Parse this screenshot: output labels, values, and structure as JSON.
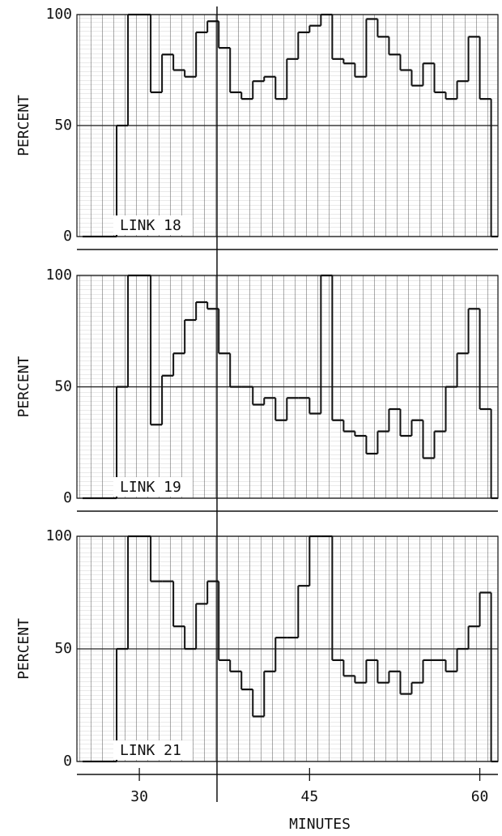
{
  "chart_data": [
    {
      "type": "line",
      "step": true,
      "annotation": "LINK 18",
      "ylabel": "PERCENT",
      "ylim": [
        0,
        100
      ],
      "yticks": [
        0,
        50,
        100
      ],
      "xlim": [
        24.5,
        61.6
      ],
      "grid": true,
      "x": [
        25,
        26,
        27,
        28,
        29,
        30,
        31,
        32,
        33,
        34,
        35,
        36,
        37,
        38,
        39,
        40,
        41,
        42,
        43,
        44,
        45,
        46,
        47,
        48,
        49,
        50,
        51,
        52,
        53,
        54,
        55,
        56,
        57,
        58,
        59,
        60,
        61
      ],
      "series": [
        {
          "color": "#111111",
          "values": [
            0,
            0,
            0,
            50,
            100,
            100,
            65,
            82,
            75,
            72,
            92,
            97,
            85,
            65,
            62,
            70,
            72,
            62,
            80,
            92,
            95,
            100,
            80,
            78,
            72,
            98,
            90,
            82,
            75,
            68,
            78,
            65,
            62,
            70,
            90,
            62,
            0
          ]
        }
      ]
    },
    {
      "type": "line",
      "step": true,
      "annotation": "LINK 19",
      "ylabel": "PERCENT",
      "ylim": [
        0,
        100
      ],
      "yticks": [
        0,
        50,
        100
      ],
      "xlim": [
        24.5,
        61.6
      ],
      "grid": true,
      "x": [
        25,
        26,
        27,
        28,
        29,
        30,
        31,
        32,
        33,
        34,
        35,
        36,
        37,
        38,
        39,
        40,
        41,
        42,
        43,
        44,
        45,
        46,
        47,
        48,
        49,
        50,
        51,
        52,
        53,
        54,
        55,
        56,
        57,
        58,
        59,
        60,
        61
      ],
      "series": [
        {
          "color": "#111111",
          "values": [
            0,
            0,
            0,
            50,
            100,
            100,
            33,
            55,
            65,
            80,
            88,
            85,
            65,
            50,
            50,
            42,
            45,
            35,
            45,
            45,
            38,
            100,
            35,
            30,
            28,
            20,
            30,
            40,
            28,
            35,
            18,
            30,
            50,
            65,
            85,
            40,
            0
          ]
        }
      ]
    },
    {
      "type": "line",
      "step": true,
      "annotation": "LINK 21",
      "ylabel": "PERCENT",
      "xlabel": "MINUTES",
      "ylim": [
        0,
        100
      ],
      "yticks": [
        0,
        50,
        100
      ],
      "xlim": [
        24.5,
        61.6
      ],
      "xticks": [
        30,
        45,
        60
      ],
      "grid": true,
      "x": [
        25,
        26,
        27,
        28,
        29,
        30,
        31,
        32,
        33,
        34,
        35,
        36,
        37,
        38,
        39,
        40,
        41,
        42,
        43,
        44,
        45,
        46,
        47,
        48,
        49,
        50,
        51,
        52,
        53,
        54,
        55,
        56,
        57,
        58,
        59,
        60,
        61
      ],
      "series": [
        {
          "color": "#111111",
          "values": [
            0,
            0,
            0,
            50,
            100,
            100,
            80,
            80,
            60,
            50,
            70,
            80,
            45,
            40,
            32,
            20,
            40,
            55,
            55,
            78,
            100,
            100,
            45,
            38,
            35,
            45,
            35,
            40,
            30,
            35,
            45,
            45,
            40,
            50,
            60,
            75,
            0
          ]
        }
      ]
    }
  ]
}
